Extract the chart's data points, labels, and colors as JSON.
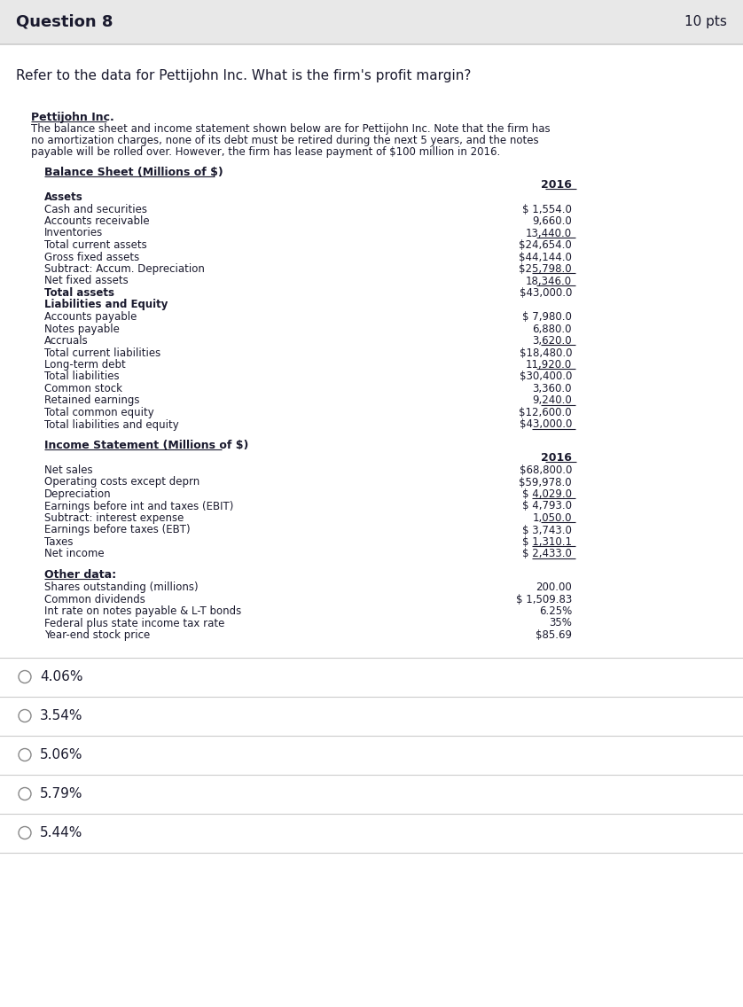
{
  "title": "Question 8",
  "pts": "10 pts",
  "question": "Refer to the data for Pettijohn Inc. What is the firm's profit margin?",
  "company_name": "Pettijohn Inc.",
  "intro_text": "The balance sheet and income statement shown below are for Pettijohn Inc. Note that the firm has\nno amortization charges, none of its debt must be retired during the next 5 years, and the notes\npayable will be rolled over. However, the firm has lease payment of $100 million in 2016.",
  "bs_title": "Balance Sheet (Millions of $)",
  "bs_col_header": "2016",
  "bs_rows": [
    {
      "label": "Assets",
      "value": "",
      "bold": true,
      "underline": false
    },
    {
      "label": "Cash and securities",
      "value": "$ 1,554.0",
      "bold": false,
      "underline": false
    },
    {
      "label": "Accounts receivable",
      "value": "9,660.0",
      "bold": false,
      "underline": false
    },
    {
      "label": "Inventories",
      "value": "13,440.0",
      "bold": false,
      "underline": true
    },
    {
      "label": "Total current assets",
      "value": "$24,654.0",
      "bold": false,
      "underline": false
    },
    {
      "label": "Gross fixed assets",
      "value": "$44,144.0",
      "bold": false,
      "underline": false
    },
    {
      "label": "Subtract: Accum. Depreciation",
      "value": "$25,798.0",
      "bold": false,
      "underline": true
    },
    {
      "label": "Net fixed assets",
      "value": "18,346.0",
      "bold": false,
      "underline": true
    },
    {
      "label": "Total assets",
      "value": "$43,000.0",
      "bold": true,
      "underline": false
    },
    {
      "label": "Liabilities and Equity",
      "value": "",
      "bold": true,
      "underline": false
    },
    {
      "label": "Accounts payable",
      "value": "$ 7,980.0",
      "bold": false,
      "underline": false
    },
    {
      "label": "Notes payable",
      "value": "6,880.0",
      "bold": false,
      "underline": false
    },
    {
      "label": "Accruals",
      "value": "3,620.0",
      "bold": false,
      "underline": true
    },
    {
      "label": "Total current liabilities",
      "value": "$18,480.0",
      "bold": false,
      "underline": false
    },
    {
      "label": "Long-term debt",
      "value": "11,920.0",
      "bold": false,
      "underline": true
    },
    {
      "label": "Total liabilities",
      "value": "$30,400.0",
      "bold": false,
      "underline": false
    },
    {
      "label": "Common stock",
      "value": "3,360.0",
      "bold": false,
      "underline": false
    },
    {
      "label": "Retained earnings",
      "value": "9,240.0",
      "bold": false,
      "underline": true
    },
    {
      "label": "Total common equity",
      "value": "$12,600.0",
      "bold": false,
      "underline": false
    },
    {
      "label": "Total liabilities and equity",
      "value": "$43,000.0",
      "bold": false,
      "underline": true
    }
  ],
  "is_title": "Income Statement (Millions of $)",
  "is_col_header": "2016",
  "is_rows": [
    {
      "label": "Net sales",
      "value": "$68,800.0",
      "bold": false,
      "underline": false
    },
    {
      "label": "Operating costs except deprn",
      "value": "$59,978.0",
      "bold": false,
      "underline": false
    },
    {
      "label": "Depreciation",
      "value": "$ 4,029.0",
      "bold": false,
      "underline": true
    },
    {
      "label": "Earnings before int and taxes (EBIT)",
      "value": "$ 4,793.0",
      "bold": false,
      "underline": false
    },
    {
      "label": "Subtract: interest expense",
      "value": "1,050.0",
      "bold": false,
      "underline": true
    },
    {
      "label": "Earnings before taxes (EBT)",
      "value": "$ 3,743.0",
      "bold": false,
      "underline": false
    },
    {
      "label": "Taxes",
      "value": "$ 1,310.1",
      "bold": false,
      "underline": true
    },
    {
      "label": "Net income",
      "value": "$ 2,433.0",
      "bold": false,
      "underline": true
    }
  ],
  "other_title": "Other data:",
  "other_rows": [
    {
      "label": "Shares outstanding (millions)",
      "value": "200.00"
    },
    {
      "label": "Common dividends",
      "value": "$ 1,509.83"
    },
    {
      "label": "Int rate on notes payable & L-T bonds",
      "value": "6.25%"
    },
    {
      "label": "Federal plus state income tax rate",
      "value": "35%"
    },
    {
      "label": "Year-end stock price",
      "value": "$85.69"
    }
  ],
  "choices": [
    {
      "label": "4.06%",
      "selected": false
    },
    {
      "label": "3.54%",
      "selected": false
    },
    {
      "label": "5.06%",
      "selected": false
    },
    {
      "label": "5.79%",
      "selected": false
    },
    {
      "label": "5.44%",
      "selected": false
    }
  ],
  "bg_header": "#e8e8e8",
  "bg_body": "#ffffff",
  "text_color": "#1a1a2e",
  "header_line_color": "#cccccc",
  "choice_line_color": "#cccccc",
  "underline_color": "#1a1a2e"
}
